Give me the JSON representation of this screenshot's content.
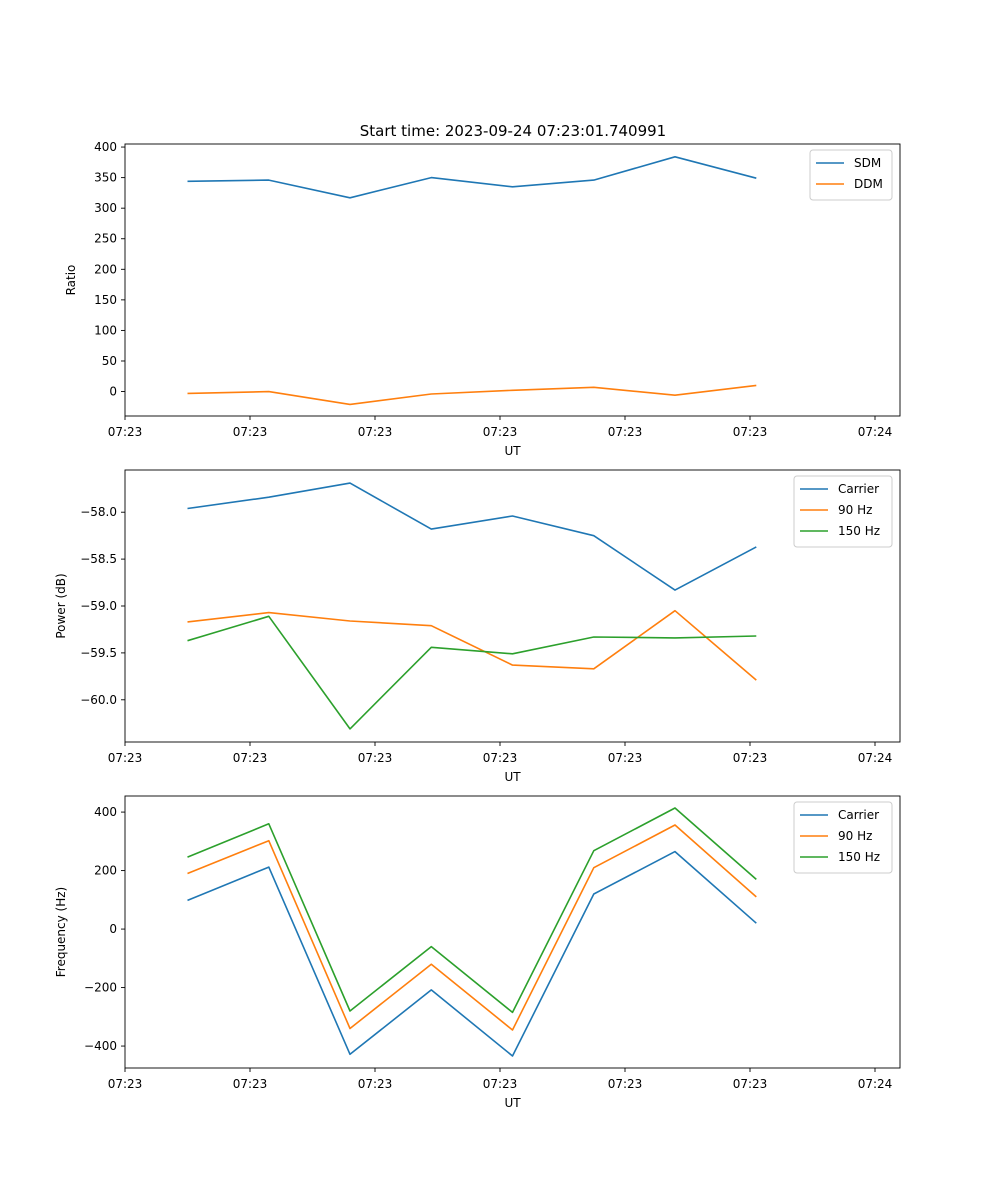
{
  "figure_title": "Start time: 2023-09-24 07:23:01.740991",
  "chart_data": [
    {
      "type": "line",
      "title": "Start time: 2023-09-24 07:23:01.740991",
      "xlabel": "UT",
      "ylabel": "Ratio",
      "x_tick_labels": [
        "07:23",
        "07:23",
        "07:23",
        "07:23",
        "07:23",
        "07:23",
        "07:24"
      ],
      "xlim": [
        0,
        6.2
      ],
      "x": [
        0.5,
        1.15,
        1.8,
        2.45,
        3.1,
        3.75,
        4.4,
        5.05
      ],
      "ylim": [
        -40,
        405
      ],
      "yticks": [
        0,
        50,
        100,
        150,
        200,
        250,
        300,
        350,
        400
      ],
      "legend_position": "upper right",
      "series": [
        {
          "name": "SDM",
          "color": "#1f77b4",
          "values": [
            344,
            346,
            317,
            350,
            335,
            346,
            384,
            349
          ]
        },
        {
          "name": "DDM",
          "color": "#ff7f0e",
          "values": [
            -3,
            0,
            -21,
            -4,
            2,
            7,
            -6,
            10
          ]
        }
      ]
    },
    {
      "type": "line",
      "xlabel": "UT",
      "ylabel": "Power (dB)",
      "x_tick_labels": [
        "07:23",
        "07:23",
        "07:23",
        "07:23",
        "07:23",
        "07:23",
        "07:24"
      ],
      "xlim": [
        0,
        6.2
      ],
      "x": [
        0.5,
        1.15,
        1.8,
        2.45,
        3.1,
        3.75,
        4.4,
        5.05
      ],
      "ylim": [
        -60.45,
        -57.55
      ],
      "yticks": [
        -58.0,
        -58.5,
        -59.0,
        -59.5,
        -60.0
      ],
      "ytick_labels": [
        "−58.0",
        "−58.5",
        "−59.0",
        "−59.5",
        "−60.0"
      ],
      "legend_position": "upper right",
      "series": [
        {
          "name": "Carrier",
          "color": "#1f77b4",
          "values": [
            -57.96,
            -57.84,
            -57.69,
            -58.18,
            -58.04,
            -58.25,
            -58.83,
            -58.37
          ]
        },
        {
          "name": "90 Hz",
          "color": "#ff7f0e",
          "values": [
            -59.17,
            -59.07,
            -59.16,
            -59.21,
            -59.63,
            -59.67,
            -59.05,
            -59.79
          ]
        },
        {
          "name": "150 Hz",
          "color": "#2ca02c",
          "values": [
            -59.37,
            -59.11,
            -60.31,
            -59.44,
            -59.51,
            -59.33,
            -59.34,
            -59.32
          ]
        }
      ]
    },
    {
      "type": "line",
      "xlabel": "UT",
      "ylabel": "Frequency (Hz)",
      "x_tick_labels": [
        "07:23",
        "07:23",
        "07:23",
        "07:23",
        "07:23",
        "07:23",
        "07:24"
      ],
      "xlim": [
        0,
        6.2
      ],
      "x": [
        0.5,
        1.15,
        1.8,
        2.45,
        3.1,
        3.75,
        4.4,
        5.05
      ],
      "ylim": [
        -475,
        455
      ],
      "yticks": [
        400,
        200,
        0,
        -200,
        -400
      ],
      "ytick_labels": [
        "400",
        "200",
        "0",
        "−200",
        "−400"
      ],
      "legend_position": "upper right",
      "series": [
        {
          "name": "Carrier",
          "color": "#1f77b4",
          "values": [
            98,
            212,
            -428,
            -208,
            -434,
            120,
            265,
            20
          ]
        },
        {
          "name": "90 Hz",
          "color": "#ff7f0e",
          "values": [
            190,
            302,
            -340,
            -120,
            -345,
            210,
            356,
            110
          ]
        },
        {
          "name": "150 Hz",
          "color": "#2ca02c",
          "values": [
            246,
            360,
            -280,
            -60,
            -285,
            268,
            414,
            170
          ]
        }
      ]
    }
  ]
}
